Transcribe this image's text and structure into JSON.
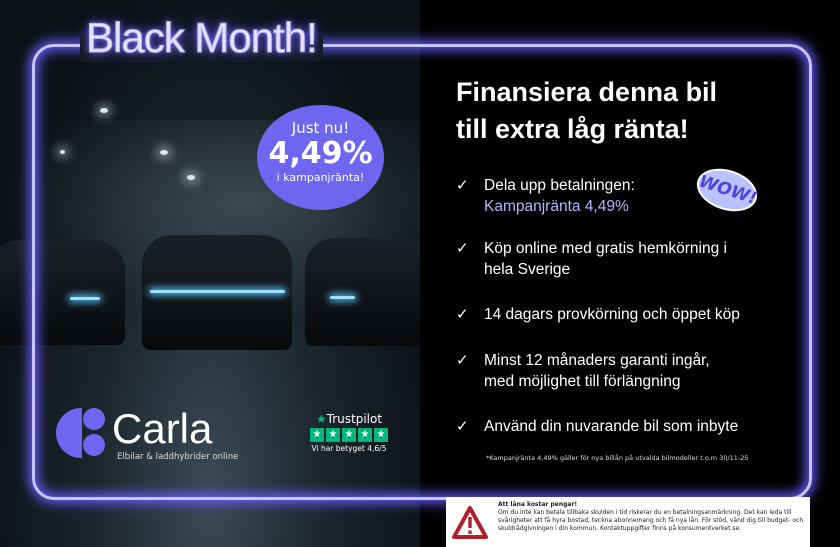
{
  "title": "Black Month!",
  "badge": {
    "line1": "Just nu!",
    "rate": "4,49%",
    "line3": "i kampanjränta!"
  },
  "headline": {
    "line1": "Finansiera denna bil",
    "line2": "till extra låg ränta!"
  },
  "features": [
    {
      "line1": "Dela upp betalningen:",
      "line2": "Kampanjränta 4,49%"
    },
    {
      "line1": "Köp online med gratis hemkörning i",
      "line2": "hela Sverige"
    },
    {
      "line1": "14 dagars provkörning och öppet köp",
      "line2": ""
    },
    {
      "line1": "Minst 12 månaders garanti ingår,",
      "line2": "med möjlighet till förlängning"
    },
    {
      "line1": "Använd din nuvarande bil som inbyte",
      "line2": ""
    }
  ],
  "wow": "WOW!",
  "footnote": "*Kampanjränta 4,49% gäller för nya billån på utvalda bilmodeller t.o.m 30/11-25",
  "warning": {
    "title": "Att låna kostar pengar!",
    "text": "Om du inte kan betala tillbaka skulden i tid riskerar du en betalningsanmärkning. Det kan leda till svårigheter att få hyra bostad, teckna abonnemang och få nya lån. För stöd, vänd dig till budget- och skuldrådgivningen i din kommun. Kontaktuppgifter finns på konsumentverket.se."
  },
  "brand": {
    "name": "Carla",
    "tagline": "Elbilar & laddhybrider online",
    "color": "#6e66f0"
  },
  "trustpilot": {
    "name": "Trustpilot",
    "rating_text": "Vi har betyget 4,6/5",
    "stars": 5,
    "color": "#00b67a"
  },
  "colors": {
    "neon": "#6a5cff",
    "accent_text": "#b8b4ff"
  }
}
